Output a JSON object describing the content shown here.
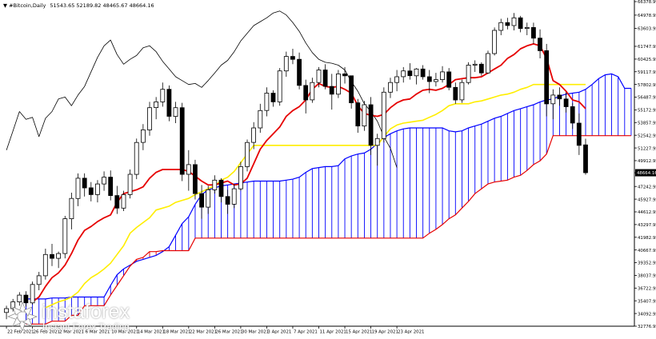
{
  "header": {
    "symbol": "#Bitcoin,Daily",
    "ohlc": "51543.65 52189.82 48465.67 48664.16"
  },
  "watermark": {
    "brand": "instaforex",
    "tagline": "Instant Forex Trading"
  },
  "colors": {
    "up": "#ffffff",
    "down": "#000000",
    "tenkan": "#e60000",
    "kijun": "#ffee00",
    "chikou": "#000000",
    "cloud_a": "#0000ff",
    "cloud_b": "#e60000"
  },
  "chart_data": {
    "type": "candlestick",
    "title": "#Bitcoin,Daily",
    "ylim": [
      32776.95,
      66378.99
    ],
    "y_ticks": [
      66378.99,
      64978.95,
      63603.95,
      61747.95,
      60425.95,
      59117.95,
      57802.95,
      56487.95,
      55172.95,
      53857.95,
      52542.95,
      51227.95,
      49912.95,
      48664.16,
      47242.95,
      45927.95,
      44612.95,
      43297.95,
      41982.95,
      40667.95,
      39352.95,
      38037.95,
      36722.95,
      35407.95,
      34092.95,
      32776.95
    ],
    "current_price": "48664.16",
    "x_tick_labels": [
      "22 Feb 2021",
      "26 Feb 2021",
      "2 Mar 2021",
      "6 Mar 2021",
      "10 Mar 2021",
      "14 Mar 2021",
      "18 Mar 2021",
      "22 Mar 2021",
      "26 Mar 2021",
      "30 Mar 2021",
      "3 Apr 2021",
      "7 Apr 2021",
      "11 Apr 2021",
      "15 Apr 2021",
      "19 Apr 2021",
      "23 Apr 2021"
    ],
    "candles": [
      [
        34200,
        34900,
        33500,
        34600
      ],
      [
        34600,
        35600,
        34300,
        35300
      ],
      [
        35300,
        36300,
        34900,
        36000
      ],
      [
        36000,
        36400,
        34800,
        35200
      ],
      [
        35200,
        37400,
        35000,
        37100
      ],
      [
        37100,
        38400,
        36500,
        38000
      ],
      [
        38000,
        40800,
        37600,
        40200
      ],
      [
        40200,
        41300,
        39000,
        39800
      ],
      [
        39800,
        40500,
        38800,
        40300
      ],
      [
        40300,
        44200,
        39800,
        43900
      ],
      [
        43900,
        46600,
        42800,
        46000
      ],
      [
        46000,
        48600,
        45200,
        48100
      ],
      [
        48100,
        48600,
        46200,
        47100
      ],
      [
        47100,
        47700,
        45700,
        46400
      ],
      [
        46400,
        47900,
        45600,
        47500
      ],
      [
        47500,
        48800,
        46800,
        48200
      ],
      [
        48200,
        48900,
        45800,
        46300
      ],
      [
        46300,
        47300,
        44400,
        45000
      ],
      [
        45000,
        46800,
        44700,
        46400
      ],
      [
        46400,
        49000,
        46000,
        48500
      ],
      [
        48500,
        52200,
        48000,
        51800
      ],
      [
        51800,
        53700,
        51000,
        53100
      ],
      [
        53100,
        56000,
        52500,
        55400
      ],
      [
        55400,
        56500,
        54200,
        56000
      ],
      [
        56000,
        58000,
        55500,
        57300
      ],
      [
        57300,
        57700,
        54000,
        54500
      ],
      [
        54500,
        56000,
        53800,
        55400
      ],
      [
        55400,
        55900,
        47800,
        48500
      ],
      [
        48500,
        51000,
        46800,
        49500
      ],
      [
        49500,
        50000,
        45900,
        46500
      ],
      [
        46500,
        47400,
        43900,
        45100
      ],
      [
        45100,
        47300,
        44400,
        46900
      ],
      [
        46900,
        48400,
        46500,
        47900
      ],
      [
        47900,
        48100,
        45600,
        46200
      ],
      [
        46200,
        46900,
        44400,
        45400
      ],
      [
        45400,
        47500,
        45000,
        47000
      ],
      [
        47000,
        49800,
        46800,
        49300
      ],
      [
        49300,
        52100,
        48800,
        51800
      ],
      [
        51800,
        53900,
        51100,
        53300
      ],
      [
        53300,
        55800,
        52800,
        55100
      ],
      [
        55100,
        57500,
        54500,
        56900
      ],
      [
        56900,
        57200,
        55500,
        56000
      ],
      [
        56000,
        59500,
        55600,
        59200
      ],
      [
        59200,
        61200,
        58600,
        60700
      ],
      [
        60700,
        61500,
        59900,
        60400
      ],
      [
        60400,
        61100,
        57300,
        57700
      ],
      [
        57700,
        58300,
        54800,
        56200
      ],
      [
        56200,
        58500,
        55900,
        58000
      ],
      [
        58000,
        59600,
        57500,
        59300
      ],
      [
        59300,
        59900,
        57300,
        57600
      ],
      [
        57600,
        58900,
        55200,
        56800
      ],
      [
        56800,
        59300,
        56400,
        58900
      ],
      [
        58900,
        59600,
        57900,
        58700
      ],
      [
        58700,
        58700,
        55300,
        55900
      ],
      [
        55900,
        56300,
        52800,
        53500
      ],
      [
        53500,
        56100,
        53000,
        55700
      ],
      [
        55700,
        56500,
        50500,
        51500
      ],
      [
        51500,
        52700,
        49400,
        52200
      ],
      [
        52200,
        57500,
        51800,
        57000
      ],
      [
        57000,
        58500,
        56400,
        58000
      ],
      [
        58000,
        59300,
        57100,
        58600
      ],
      [
        58600,
        59600,
        58000,
        59200
      ],
      [
        59200,
        60000,
        58300,
        58700
      ],
      [
        58700,
        59500,
        57800,
        59400
      ],
      [
        59400,
        59800,
        58300,
        58600
      ],
      [
        58600,
        59300,
        56900,
        58100
      ],
      [
        58100,
        59000,
        57600,
        58300
      ],
      [
        58300,
        59700,
        58000,
        59100
      ],
      [
        59100,
        59500,
        57200,
        57500
      ],
      [
        57500,
        58000,
        55800,
        56200
      ],
      [
        56200,
        58300,
        55900,
        58000
      ],
      [
        58000,
        60100,
        57800,
        59800
      ],
      [
        59800,
        60300,
        59100,
        59900
      ],
      [
        59900,
        60100,
        58700,
        59000
      ],
      [
        59000,
        61300,
        58900,
        61000
      ],
      [
        61000,
        63700,
        60800,
        63400
      ],
      [
        63400,
        64600,
        62900,
        64200
      ],
      [
        64200,
        64700,
        63500,
        63900
      ],
      [
        63900,
        65200,
        63400,
        64700
      ],
      [
        64700,
        64900,
        63200,
        63600
      ],
      [
        63600,
        64200,
        62900,
        63700
      ],
      [
        63700,
        64200,
        62000,
        62600
      ],
      [
        62600,
        63500,
        60500,
        61300
      ],
      [
        61300,
        62000,
        54500,
        55800
      ],
      [
        55800,
        57300,
        54200,
        56700
      ],
      [
        56700,
        57500,
        55600,
        56300
      ],
      [
        56300,
        57000,
        54900,
        55500
      ],
      [
        55500,
        55900,
        53200,
        53800
      ],
      [
        53800,
        54800,
        50500,
        51500
      ],
      [
        51543.65,
        52189.82,
        48465.67,
        48664.16
      ]
    ],
    "cloud_span_a": [
      35600,
      35600,
      35600,
      35600,
      35700,
      35700,
      35700,
      35800,
      35800,
      35800,
      35800,
      35800,
      35800,
      37000,
      38100,
      38700,
      39100,
      39500,
      39700,
      39900,
      40100,
      40500,
      41000,
      42200,
      43400,
      44100,
      45400,
      46400,
      46900,
      47100,
      47300,
      47400,
      47500,
      47600,
      47700,
      47800,
      47800,
      47800,
      47800,
      47800,
      47900,
      48000,
      48200,
      48700,
      49100,
      49200,
      49300,
      49300,
      49400,
      50100,
      50400,
      50600,
      50700,
      51100,
      51700,
      52300,
      52700,
      53000,
      53200,
      53300,
      53300,
      53300,
      53300,
      53300,
      53300,
      53000,
      52900,
      53000,
      53300,
      53500,
      53700,
      54000,
      54300,
      54500,
      54800,
      55100,
      55300,
      55500,
      55700,
      56000,
      56200,
      56300,
      56600,
      56800,
      56900,
      57000,
      57300,
      57800,
      58400,
      58800,
      58900,
      58600,
      57400,
      57400
    ],
    "cloud_span_b": [
      33000,
      33000,
      33000,
      33000,
      33300,
      33300,
      33300,
      33900,
      33900,
      34900,
      34900,
      34900,
      34900,
      36000,
      37000,
      38000,
      39000,
      39700,
      39900,
      40500,
      40500,
      40600,
      40600,
      40600,
      40600,
      40600,
      41900,
      41900,
      41900,
      41900,
      41900,
      41900,
      41900,
      41900,
      41900,
      41900,
      41900,
      41900,
      41900,
      41900,
      41900,
      41900,
      41900,
      41900,
      41900,
      41900,
      41900,
      41900,
      41900,
      41900,
      41900,
      41900,
      41900,
      41900,
      41900,
      41900,
      41900,
      41900,
      41900,
      41900,
      41900,
      41900,
      42400,
      42800,
      43300,
      43900,
      44300,
      45000,
      45700,
      46500,
      47000,
      47500,
      47700,
      47800,
      47900,
      48200,
      48400,
      48900,
      49500,
      49900,
      50600,
      52500,
      52500,
      52500,
      52500,
      52500,
      52500,
      52500,
      52500,
      52500,
      52500,
      52500,
      52500,
      52500
    ],
    "tenkan": [
      null,
      null,
      null,
      null,
      35300,
      35800,
      36900,
      37800,
      38300,
      39100,
      40300,
      41700,
      42700,
      43100,
      43600,
      44000,
      44300,
      45600,
      46500,
      46700,
      46900,
      47200,
      48100,
      48700,
      49000,
      49000,
      49000,
      49000,
      48800,
      48300,
      47800,
      47400,
      47400,
      47600,
      47800,
      47400,
      47500,
      48100,
      49600,
      51100,
      52000,
      52700,
      53400,
      54500,
      55100,
      55500,
      56200,
      57300,
      57900,
      57600,
      57500,
      57600,
      57300,
      56900,
      55600,
      54800,
      54600,
      54500,
      54700,
      55400,
      55900,
      56200,
      56300,
      56800,
      57200,
      57300,
      57200,
      57400,
      57800,
      58300,
      58400,
      58500,
      58500,
      58600,
      59000,
      59400,
      59800,
      60500,
      60900,
      61500,
      61800,
      62000,
      61800,
      60500,
      58200,
      57800,
      57100,
      56200,
      56000,
      55300
    ],
    "kijun": [
      null,
      null,
      null,
      null,
      null,
      null,
      34700,
      35000,
      35300,
      35500,
      35800,
      36300,
      37200,
      37800,
      38200,
      38700,
      39300,
      40200,
      41100,
      42400,
      43000,
      43500,
      44000,
      44800,
      45000,
      45200,
      45600,
      45800,
      46000,
      46400,
      46700,
      47000,
      47300,
      47900,
      48200,
      48800,
      49700,
      50600,
      51500,
      51500,
      51500,
      51500,
      51500,
      51500,
      51500,
      51500,
      51500,
      51500,
      51500,
      51500,
      51500,
      51500,
      51500,
      51500,
      51500,
      51500,
      51500,
      51500,
      52400,
      53200,
      53600,
      53800,
      53900,
      54000,
      54100,
      54400,
      54700,
      55100,
      55600,
      55800,
      55800,
      55800,
      56000,
      56100,
      56300,
      56500,
      56700,
      56800,
      57000,
      57300,
      57500,
      57800,
      57800,
      57800,
      57800,
      57800,
      57800,
      57800,
      57800,
      57800
    ],
    "chikou": [
      51000,
      53000,
      55000,
      54200,
      54400,
      52400,
      54300,
      55000,
      56300,
      56500,
      55600,
      56700,
      57600,
      59100,
      60600,
      61800,
      62400,
      60900,
      59900,
      60400,
      60800,
      61600,
      61800,
      61200,
      60200,
      59400,
      58600,
      58200,
      57800,
      57900,
      57500,
      58200,
      59000,
      59800,
      60300,
      61200,
      62300,
      63100,
      63900,
      64300,
      64700,
      65200,
      65400,
      65000,
      64200,
      63300,
      62100,
      61100,
      60400,
      60100,
      60000,
      59800,
      59300,
      58100,
      57100,
      55800,
      55000,
      54000,
      52400,
      51200,
      49200
    ]
  }
}
